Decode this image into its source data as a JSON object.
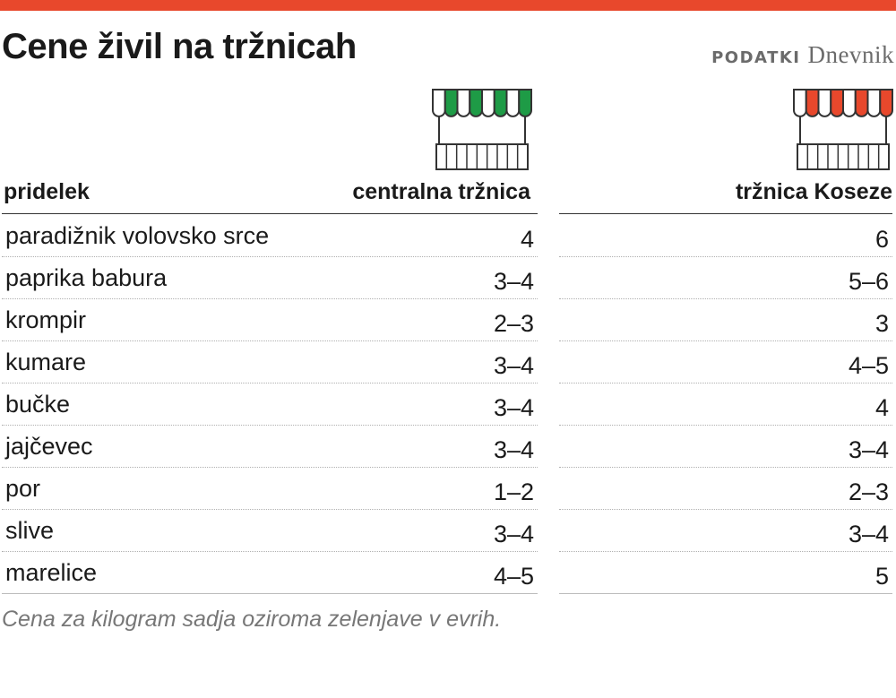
{
  "title": "Cene živil na tržnicah",
  "source": {
    "label": "PODATKI",
    "brand": "Dnevnik"
  },
  "colors": {
    "accent_bar": "#e8482c",
    "market1_awning": "#1e9b46",
    "market2_awning": "#e8482c",
    "text": "#1a1a1a",
    "note": "#777777"
  },
  "icons": {
    "market1": "market-stall-green-icon",
    "market2": "market-stall-red-icon"
  },
  "chart_data": {
    "type": "table",
    "columns": [
      "pridelek",
      "centralna tržnica",
      "tržnica Koseze"
    ],
    "rows": [
      {
        "item": "paradižnik volovsko srce",
        "centralna": "4",
        "koseze": "6"
      },
      {
        "item": "paprika babura",
        "centralna": "3–4",
        "koseze": "5–6"
      },
      {
        "item": "krompir",
        "centralna": "2–3",
        "koseze": "3"
      },
      {
        "item": "kumare",
        "centralna": "3–4",
        "koseze": "4–5"
      },
      {
        "item": "bučke",
        "centralna": "3–4",
        "koseze": "4"
      },
      {
        "item": "jajčevec",
        "centralna": "3–4",
        "koseze": "3–4"
      },
      {
        "item": "por",
        "centralna": "1–2",
        "koseze": "2–3"
      },
      {
        "item": "slive",
        "centralna": "3–4",
        "koseze": "3–4"
      },
      {
        "item": "marelice",
        "centralna": "4–5",
        "koseze": "5"
      }
    ],
    "note": "Cena za kilogram sadja oziroma zelenjave v evrih."
  }
}
